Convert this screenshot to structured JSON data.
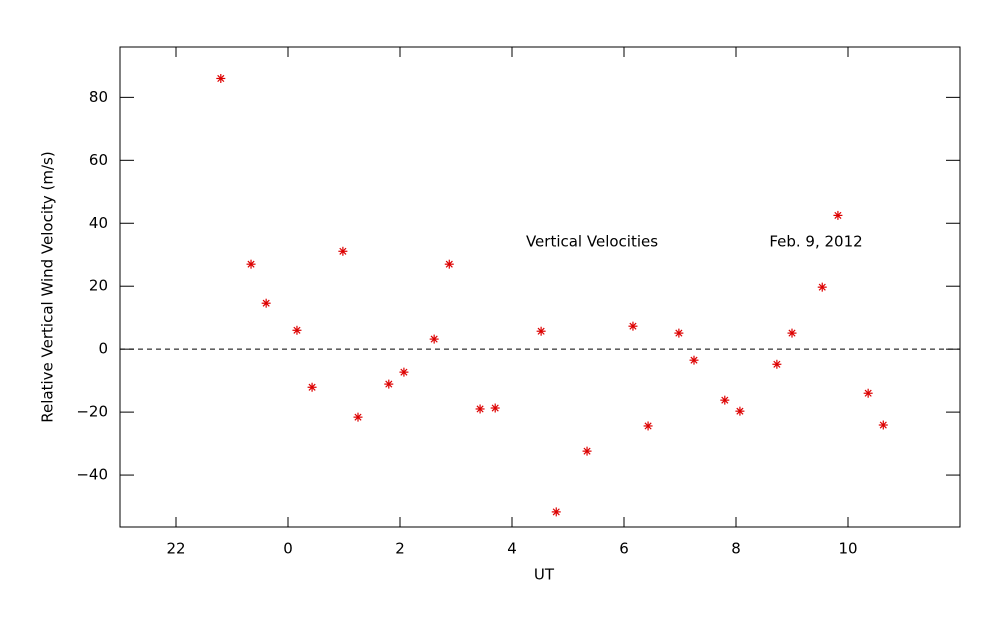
{
  "chart_data": {
    "type": "scatter",
    "xlabel": "UT",
    "ylabel": "Relative Vertical Wind Velocity (m/s)",
    "annotations": [
      "Vertical Velocities",
      "Feb. 9, 2012"
    ],
    "xlim": [
      -3,
      12
    ],
    "ylim": [
      -56.5,
      96
    ],
    "xticks": [
      {
        "value": -2,
        "label": "22"
      },
      0,
      2,
      4,
      6,
      8,
      10
    ],
    "yticks": [
      {
        "value": -40,
        "label": "−40"
      },
      {
        "value": -20,
        "label": "−20"
      },
      0,
      20,
      40,
      60,
      80
    ],
    "hline": 0,
    "series": [
      {
        "color": "#dd0000",
        "x": [
          -1.2,
          -0.66,
          -0.39,
          0.16,
          0.43,
          0.98,
          1.25,
          1.8,
          2.07,
          2.61,
          2.88,
          3.43,
          3.7,
          4.52,
          4.79,
          5.34,
          6.16,
          6.43,
          6.98,
          7.25,
          7.8,
          8.07,
          8.73,
          9.0,
          9.54,
          9.82,
          10.36,
          10.63
        ],
        "values": [
          86.0,
          27.0,
          14.6,
          6.0,
          -12.1,
          31.1,
          -21.6,
          -11.1,
          -7.3,
          3.2,
          27.0,
          -19.0,
          -18.7,
          5.7,
          -51.7,
          -32.4,
          7.3,
          -24.4,
          5.1,
          -3.5,
          -16.2,
          -19.7,
          -4.8,
          5.1,
          19.7,
          42.5,
          -14.0,
          -24.1
        ]
      }
    ]
  }
}
